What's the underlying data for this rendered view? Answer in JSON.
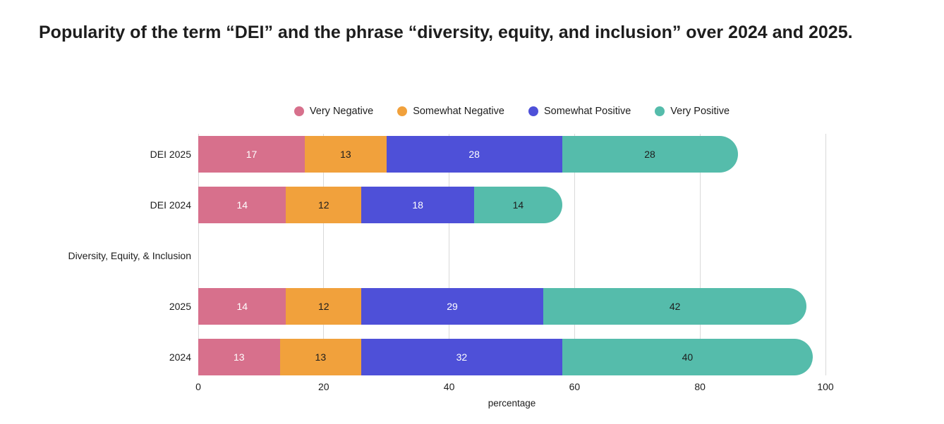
{
  "title": "Popularity of the term “DEI” and the phrase “diversity, equity, and inclusion” over 2024 and 2025.",
  "chart_data": {
    "type": "bar",
    "orientation": "horizontal",
    "stacked": true,
    "title": "Popularity of the term “DEI” and the phrase “diversity, equity, and inclusion” over 2024 and 2025.",
    "categories": [
      "DEI 2025",
      "DEI 2024",
      "Diversity, Equity, & Inclusion",
      "2025",
      "2024"
    ],
    "series": [
      {
        "name": "Very Negative",
        "color": "#d7708c",
        "label_color": "#ffffff",
        "values": [
          17,
          14,
          null,
          14,
          13
        ]
      },
      {
        "name": "Somewhat Negative",
        "color": "#f1a13c",
        "label_color": "#1d1d1d",
        "values": [
          13,
          12,
          null,
          12,
          13
        ]
      },
      {
        "name": "Somewhat Positive",
        "color": "#4e50d8",
        "label_color": "#ffffff",
        "values": [
          28,
          18,
          null,
          29,
          32
        ]
      },
      {
        "name": "Very Positive",
        "color": "#55bcab",
        "label_color": "#1d1d1d",
        "values": [
          28,
          14,
          null,
          42,
          40
        ]
      }
    ],
    "xlabel": "percentage",
    "xlim": [
      0,
      100
    ],
    "xticks": [
      0,
      20,
      40,
      60,
      80,
      100
    ],
    "legend_position": "top",
    "grid": true,
    "gridline_color": "#d9d9d9",
    "background_color": "#ffffff"
  }
}
